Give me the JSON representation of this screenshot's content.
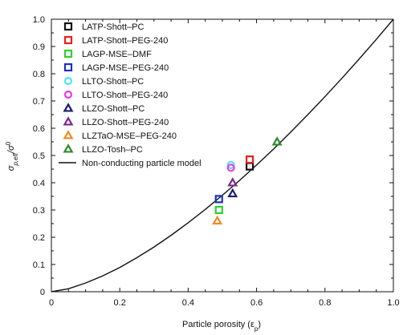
{
  "chart_data": {
    "type": "scatter",
    "xlabel": "Particle porosity (ε",
    "xlabel_sub": "p",
    "xlabel_tail": ")",
    "ylabel": "σ",
    "ylabel_sub": "p,eff",
    "ylabel_tail": "/σ",
    "ylabel_sup": "0",
    "xlim": [
      0,
      1
    ],
    "ylim": [
      0,
      1
    ],
    "xticks": [
      "0",
      "0.2",
      "0.4",
      "0.6",
      "0.8",
      "1.0"
    ],
    "yticks": [
      "0",
      "0.1",
      "0.2",
      "0.3",
      "0.4",
      "0.5",
      "0.6",
      "0.7",
      "0.8",
      "0.9",
      "1.0"
    ],
    "legend_position": "top-left",
    "series": [
      {
        "name": "LATP-Shott–PC",
        "marker": "square",
        "color": "#111111",
        "x": [
          0.58
        ],
        "y": [
          0.46
        ]
      },
      {
        "name": "LATP-Shott–PEG-240",
        "marker": "square",
        "color": "#e8201c",
        "x": [
          0.58
        ],
        "y": [
          0.485
        ]
      },
      {
        "name": "LAGP-MSE–DMF",
        "marker": "square",
        "color": "#2fd12f",
        "x": [
          0.49
        ],
        "y": [
          0.3
        ]
      },
      {
        "name": "LAGP-MSE–PEG-240",
        "marker": "square",
        "color": "#1f2fc4",
        "x": [
          0.49
        ],
        "y": [
          0.34
        ]
      },
      {
        "name": "LLTO-Shott–PC",
        "marker": "circle",
        "color": "#4fe3f0",
        "x": [
          0.525
        ],
        "y": [
          0.465
        ]
      },
      {
        "name": "LLTO-Shott–PEG-240",
        "marker": "circle",
        "color": "#e83be6",
        "x": [
          0.525
        ],
        "y": [
          0.455
        ]
      },
      {
        "name": "LLZO-Shott–PC",
        "marker": "triangle",
        "color": "#1a1a7a",
        "x": [
          0.53
        ],
        "y": [
          0.36
        ]
      },
      {
        "name": "LLZO-Shott–PEG-240",
        "marker": "triangle",
        "color": "#7a2a8c",
        "x": [
          0.53
        ],
        "y": [
          0.4
        ]
      },
      {
        "name": "LLZTaO-MSE–PEG-240",
        "marker": "triangle",
        "color": "#f08a24",
        "x": [
          0.485
        ],
        "y": [
          0.26
        ]
      },
      {
        "name": "LLZO-Tosh–PC",
        "marker": "triangle",
        "color": "#2e8b2e",
        "x": [
          0.66
        ],
        "y": [
          0.55
        ]
      }
    ],
    "model": {
      "name": "Non-conducting particle model",
      "color": "#111111",
      "x": [
        0,
        0.05,
        0.1,
        0.15,
        0.2,
        0.25,
        0.3,
        0.35,
        0.4,
        0.45,
        0.5,
        0.55,
        0.6,
        0.65,
        0.7,
        0.75,
        0.8,
        0.85,
        0.9,
        0.95,
        1.0
      ],
      "y": [
        0,
        0.011,
        0.032,
        0.058,
        0.089,
        0.125,
        0.164,
        0.207,
        0.253,
        0.302,
        0.354,
        0.408,
        0.465,
        0.524,
        0.586,
        0.65,
        0.716,
        0.784,
        0.854,
        0.926,
        1.0
      ]
    }
  }
}
